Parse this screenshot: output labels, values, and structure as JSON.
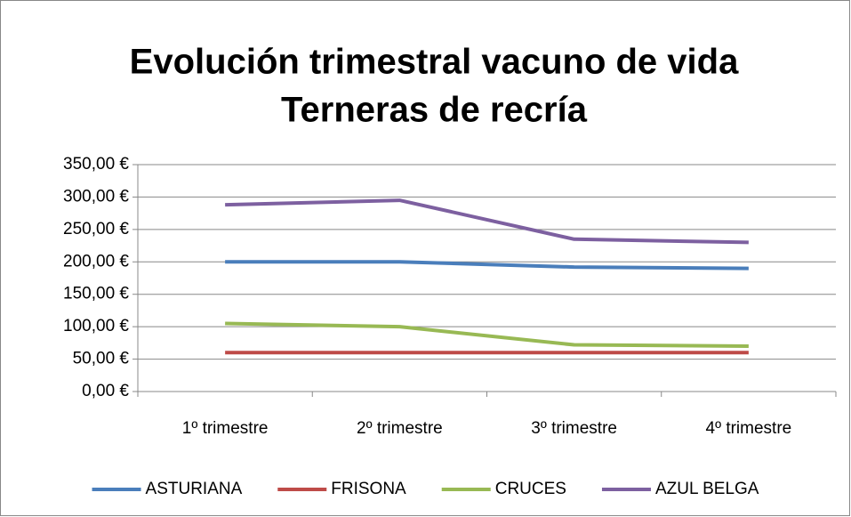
{
  "chart_data": {
    "type": "line",
    "title": [
      "Evolución trimestral vacuno de vida",
      "Terneras de recría"
    ],
    "categories": [
      "1º trimestre",
      "2º trimestre",
      "3º trimestre",
      "4º trimestre"
    ],
    "series": [
      {
        "name": "ASTURIANA",
        "color": "#4a7ebb",
        "values": [
          200,
          200,
          192,
          190
        ]
      },
      {
        "name": "FRISONA",
        "color": "#be4b48",
        "values": [
          60,
          60,
          60,
          60
        ]
      },
      {
        "name": "CRUCES",
        "color": "#98b954",
        "values": [
          105,
          100,
          72,
          70
        ]
      },
      {
        "name": "AZUL BELGA",
        "color": "#7d60a0",
        "values": [
          288,
          295,
          235,
          230
        ]
      }
    ],
    "ylim": [
      0,
      350
    ],
    "yticks": [
      {
        "value": 0,
        "label": "0,00 €"
      },
      {
        "value": 50,
        "label": "50,00 €"
      },
      {
        "value": 100,
        "label": "100,00 €"
      },
      {
        "value": 150,
        "label": "150,00 €"
      },
      {
        "value": 200,
        "label": "200,00 €"
      },
      {
        "value": 250,
        "label": "250,00 €"
      },
      {
        "value": 300,
        "label": "300,00 €"
      },
      {
        "value": 350,
        "label": "350,00 €"
      }
    ],
    "grid": true,
    "legend": "bottom"
  }
}
